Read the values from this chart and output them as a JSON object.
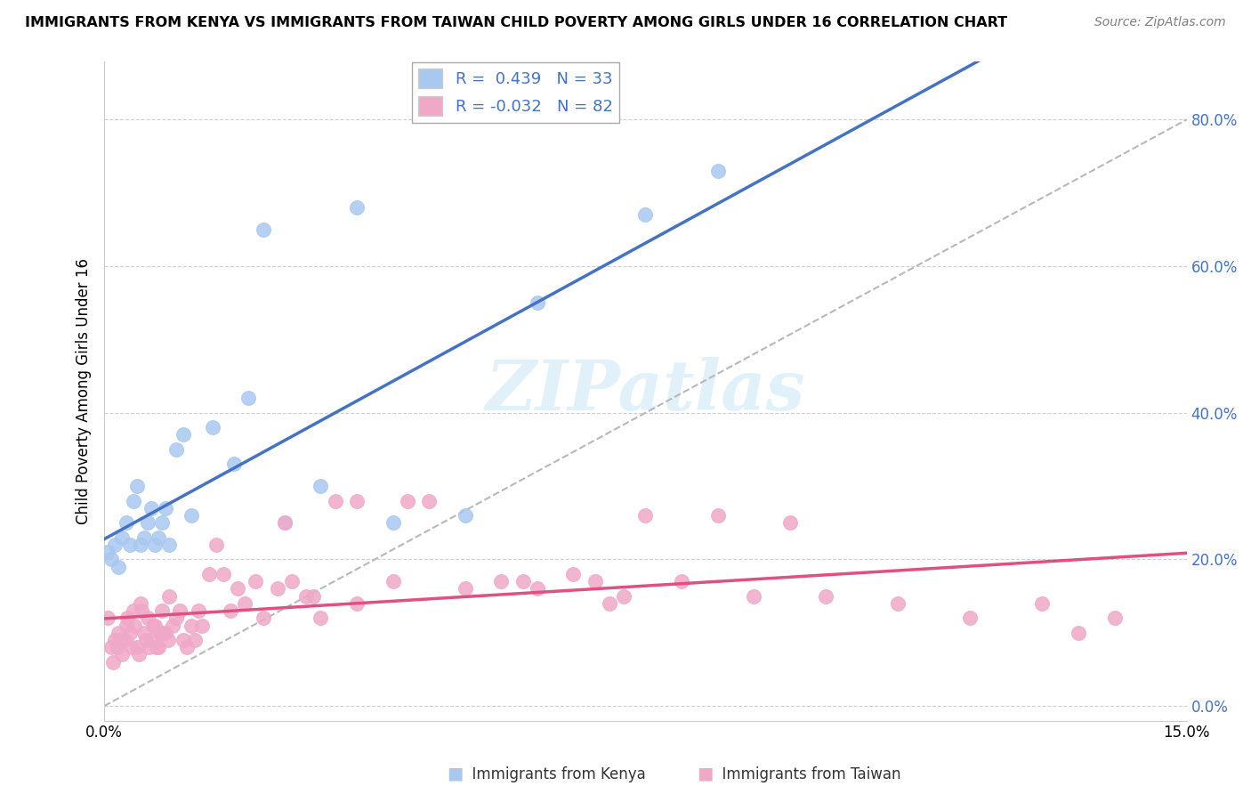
{
  "title": "IMMIGRANTS FROM KENYA VS IMMIGRANTS FROM TAIWAN CHILD POVERTY AMONG GIRLS UNDER 16 CORRELATION CHART",
  "source": "Source: ZipAtlas.com",
  "ylabel": "Child Poverty Among Girls Under 16",
  "xlim": [
    0.0,
    15.0
  ],
  "ylim": [
    -2.0,
    88.0
  ],
  "yticks": [
    0,
    20,
    40,
    60,
    80
  ],
  "ytick_labels": [
    "0.0%",
    "20.0%",
    "40.0%",
    "60.0%",
    "80.0%"
  ],
  "xtick_labels": [
    "0.0%",
    "15.0%"
  ],
  "kenya_R": 0.439,
  "kenya_N": 33,
  "taiwan_R": -0.032,
  "taiwan_N": 82,
  "kenya_color": "#a8c8f0",
  "taiwan_color": "#f0a8c8",
  "kenya_line_color": "#4472c4",
  "taiwan_line_color": "#e05080",
  "dash_line_color": "#b8b8b8",
  "watermark_text": "ZIPatlas",
  "kenya_x": [
    0.05,
    0.1,
    0.15,
    0.2,
    0.25,
    0.3,
    0.35,
    0.4,
    0.45,
    0.5,
    0.55,
    0.6,
    0.65,
    0.7,
    0.75,
    0.8,
    0.85,
    0.9,
    1.0,
    1.1,
    1.2,
    1.5,
    1.8,
    2.0,
    2.2,
    2.5,
    3.0,
    3.5,
    4.0,
    5.0,
    6.0,
    7.5,
    8.5
  ],
  "kenya_y": [
    21,
    20,
    22,
    19,
    23,
    25,
    22,
    28,
    30,
    22,
    23,
    25,
    27,
    22,
    23,
    25,
    27,
    22,
    35,
    37,
    26,
    38,
    33,
    42,
    65,
    25,
    30,
    68,
    25,
    26,
    55,
    67,
    73
  ],
  "taiwan_x": [
    0.05,
    0.1,
    0.12,
    0.15,
    0.18,
    0.2,
    0.22,
    0.25,
    0.28,
    0.3,
    0.32,
    0.35,
    0.38,
    0.4,
    0.42,
    0.45,
    0.48,
    0.5,
    0.52,
    0.55,
    0.58,
    0.6,
    0.62,
    0.65,
    0.68,
    0.7,
    0.72,
    0.75,
    0.78,
    0.8,
    0.82,
    0.85,
    0.88,
    0.9,
    0.95,
    1.0,
    1.05,
    1.1,
    1.15,
    1.2,
    1.25,
    1.3,
    1.35,
    1.45,
    1.55,
    1.65,
    1.75,
    1.85,
    1.95,
    2.1,
    2.2,
    2.4,
    2.5,
    2.6,
    2.8,
    2.9,
    3.0,
    3.2,
    3.5,
    4.0,
    4.5,
    5.0,
    5.5,
    6.0,
    6.5,
    7.0,
    7.5,
    8.0,
    8.5,
    9.0,
    9.5,
    10.0,
    11.0,
    12.0,
    13.0,
    14.0,
    3.5,
    4.2,
    5.8,
    6.8,
    7.2,
    13.5
  ],
  "taiwan_y": [
    12,
    8,
    6,
    9,
    8,
    10,
    9,
    7,
    9,
    11,
    12,
    10,
    8,
    13,
    11,
    8,
    7,
    14,
    13,
    10,
    9,
    12,
    8,
    9,
    11,
    11,
    8,
    8,
    10,
    13,
    10,
    10,
    9,
    15,
    11,
    12,
    13,
    9,
    8,
    11,
    9,
    13,
    11,
    18,
    22,
    18,
    13,
    16,
    14,
    17,
    12,
    16,
    25,
    17,
    15,
    15,
    12,
    28,
    14,
    17,
    28,
    16,
    17,
    16,
    18,
    14,
    26,
    17,
    26,
    15,
    25,
    15,
    14,
    12,
    14,
    12,
    28,
    28,
    17,
    17,
    15,
    10
  ]
}
